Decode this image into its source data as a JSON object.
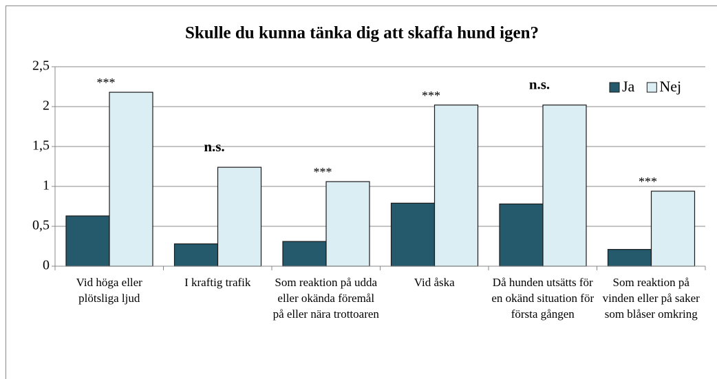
{
  "chart_data": {
    "type": "bar",
    "title": "Skulle du kunna tänka dig att skaffa hund igen?",
    "categories": [
      "Vid höga eller plötsliga ljud",
      "I kraftig trafik",
      "Som reaktion på udda eller okända föremål på eller nära trottoaren",
      "Vid åska",
      "Då hunden utsätts för en okänd situation för första gången",
      "Som reaktion på vinden eller på saker som blåser omkring"
    ],
    "series": [
      {
        "name": "Ja",
        "color": "#245a6b",
        "values": [
          0.63,
          0.28,
          0.31,
          0.79,
          0.78,
          0.21
        ]
      },
      {
        "name": "Nej",
        "color": "#dbeef4",
        "values": [
          2.18,
          1.24,
          1.06,
          2.02,
          2.02,
          0.94
        ]
      }
    ],
    "annotations": [
      "***",
      "n.s.",
      "***",
      "***",
      "n.s.",
      "***"
    ],
    "ylim": [
      0,
      2.5
    ],
    "yticks": [
      0,
      {
        "value": 0.5,
        "label": "0,5"
      },
      1,
      {
        "value": 1.5,
        "label": "1,5"
      },
      2,
      {
        "value": 2.5,
        "label": "2,5"
      }
    ],
    "grid": true,
    "legend": "top-right"
  }
}
